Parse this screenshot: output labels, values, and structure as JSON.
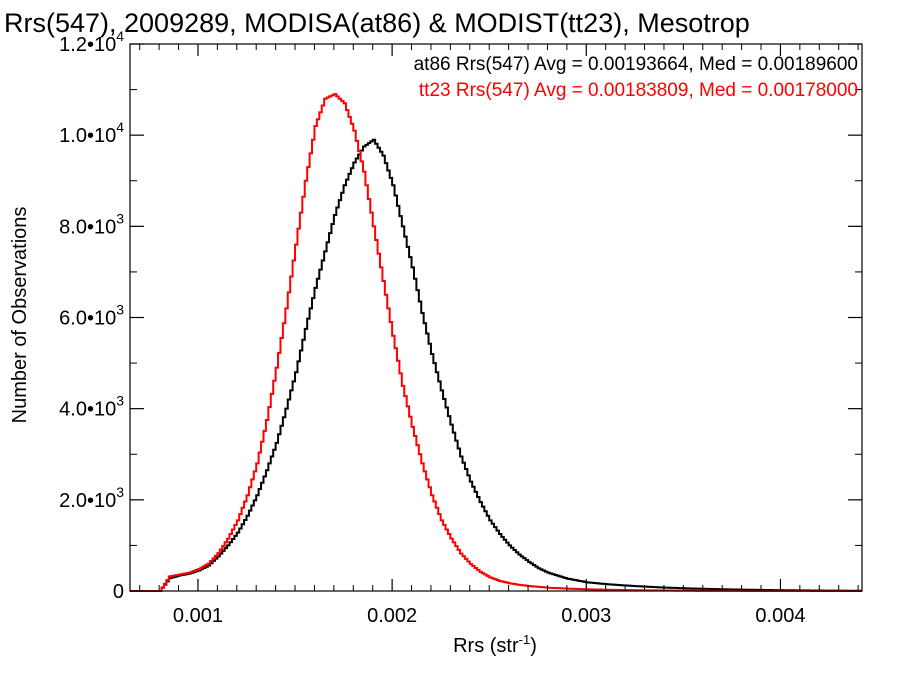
{
  "chart_data": {
    "type": "line",
    "title": "Rrs(547), 2009289, MODISA(at86) & MODIST(tt23), Mesotrop",
    "xlabel": "Rrs (str",
    "xlabel_sup": "-1",
    "xlabel_close": ")",
    "ylabel": "Number of Observations",
    "xlim": [
      0.00065,
      0.00442
    ],
    "ylim": [
      0,
      12000
    ],
    "grid": false,
    "step": true,
    "x_ticks": [
      {
        "value": 0.001,
        "label": "0.001"
      },
      {
        "value": 0.002,
        "label": "0.002"
      },
      {
        "value": 0.003,
        "label": "0.003"
      },
      {
        "value": 0.004,
        "label": "0.004"
      }
    ],
    "y_ticks": [
      {
        "value": 0,
        "label": "0",
        "exp": ""
      },
      {
        "value": 2000,
        "label": "2.0•10",
        "exp": "3"
      },
      {
        "value": 4000,
        "label": "4.0•10",
        "exp": "3"
      },
      {
        "value": 6000,
        "label": "6.0•10",
        "exp": "3"
      },
      {
        "value": 8000,
        "label": "8.0•10",
        "exp": "3"
      },
      {
        "value": 10000,
        "label": "1.0•10",
        "exp": "4"
      },
      {
        "value": 12000,
        "label": "1.2•10",
        "exp": "4"
      }
    ],
    "annotations": [
      {
        "text": "at86 Rrs(547) Avg = 0.00193664, Med = 0.00189600",
        "color": "#000000"
      },
      {
        "text": "tt23 Rrs(547) Avg = 0.00183809, Med = 0.00178000",
        "color": "#ff0000"
      }
    ],
    "series": [
      {
        "color": "#000000",
        "x": [
          0.00065,
          0.00075,
          0.0008,
          0.00085,
          0.0009,
          0.00095,
          0.001,
          0.00105,
          0.0011,
          0.00115,
          0.0012,
          0.00125,
          0.0013,
          0.00135,
          0.0014,
          0.00145,
          0.0015,
          0.00155,
          0.0016,
          0.00165,
          0.0017,
          0.00175,
          0.0018,
          0.00185,
          0.0019,
          0.00195,
          0.002,
          0.00205,
          0.0021,
          0.00215,
          0.0022,
          0.00225,
          0.0023,
          0.00235,
          0.0024,
          0.00245,
          0.0025,
          0.00255,
          0.0026,
          0.00265,
          0.0027,
          0.00275,
          0.0028,
          0.0029,
          0.003,
          0.0031,
          0.0032,
          0.0033,
          0.0034,
          0.0035,
          0.0036,
          0.0037,
          0.0038,
          0.0039,
          0.004,
          0.0041,
          0.0042,
          0.0043,
          0.0044
        ],
        "y": [
          0,
          0,
          0,
          280,
          340,
          380,
          450,
          560,
          760,
          1000,
          1280,
          1650,
          2100,
          2650,
          3250,
          4000,
          4800,
          5750,
          6650,
          7450,
          8250,
          8900,
          9400,
          9750,
          9900,
          9550,
          8900,
          8000,
          7100,
          6100,
          5200,
          4400,
          3650,
          2950,
          2400,
          1950,
          1550,
          1250,
          1000,
          800,
          640,
          500,
          400,
          270,
          190,
          150,
          120,
          95,
          75,
          60,
          48,
          38,
          30,
          24,
          18,
          14,
          10,
          8,
          5
        ]
      },
      {
        "color": "#ff0000",
        "x": [
          0.00065,
          0.00075,
          0.0008,
          0.00085,
          0.0009,
          0.00095,
          0.001,
          0.00105,
          0.0011,
          0.00115,
          0.0012,
          0.00125,
          0.0013,
          0.00135,
          0.0014,
          0.00145,
          0.0015,
          0.00155,
          0.0016,
          0.00165,
          0.0017,
          0.00175,
          0.0018,
          0.00185,
          0.0019,
          0.00195,
          0.002,
          0.00205,
          0.0021,
          0.00215,
          0.0022,
          0.00225,
          0.0023,
          0.00235,
          0.0024,
          0.00245,
          0.0025,
          0.00255,
          0.0026,
          0.00265,
          0.0027,
          0.00275,
          0.0028,
          0.0029,
          0.003,
          0.0031,
          0.0032,
          0.0033,
          0.0034,
          0.0035,
          0.0036,
          0.0037,
          0.0038,
          0.0039,
          0.004,
          0.0041,
          0.0042,
          0.0043,
          0.0044
        ],
        "y": [
          0,
          0,
          0,
          320,
          360,
          400,
          480,
          600,
          830,
          1150,
          1550,
          2100,
          2800,
          3750,
          4900,
          6200,
          7600,
          9000,
          10200,
          10800,
          10900,
          10700,
          10100,
          9200,
          8000,
          6800,
          5600,
          4500,
          3600,
          2800,
          2100,
          1550,
          1150,
          820,
          590,
          420,
          300,
          220,
          170,
          135,
          110,
          90,
          72,
          52,
          38,
          28,
          20,
          15,
          11,
          8,
          6,
          5,
          4,
          3,
          2,
          2,
          1,
          1,
          1
        ]
      }
    ]
  }
}
